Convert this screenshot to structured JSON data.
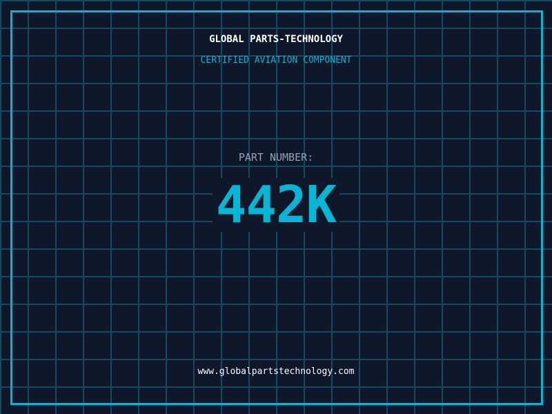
{
  "header": {
    "title": "GLOBAL PARTS-TECHNOLOGY",
    "subtitle": "CERTIFIED AVIATION COMPONENT"
  },
  "part": {
    "label": "PART NUMBER:",
    "number": "442K"
  },
  "footer": {
    "url": "www.globalpartstechnology.com"
  },
  "colors": {
    "background": "#0f172a",
    "accent": "#06b6d4",
    "grid": "#155e75"
  }
}
